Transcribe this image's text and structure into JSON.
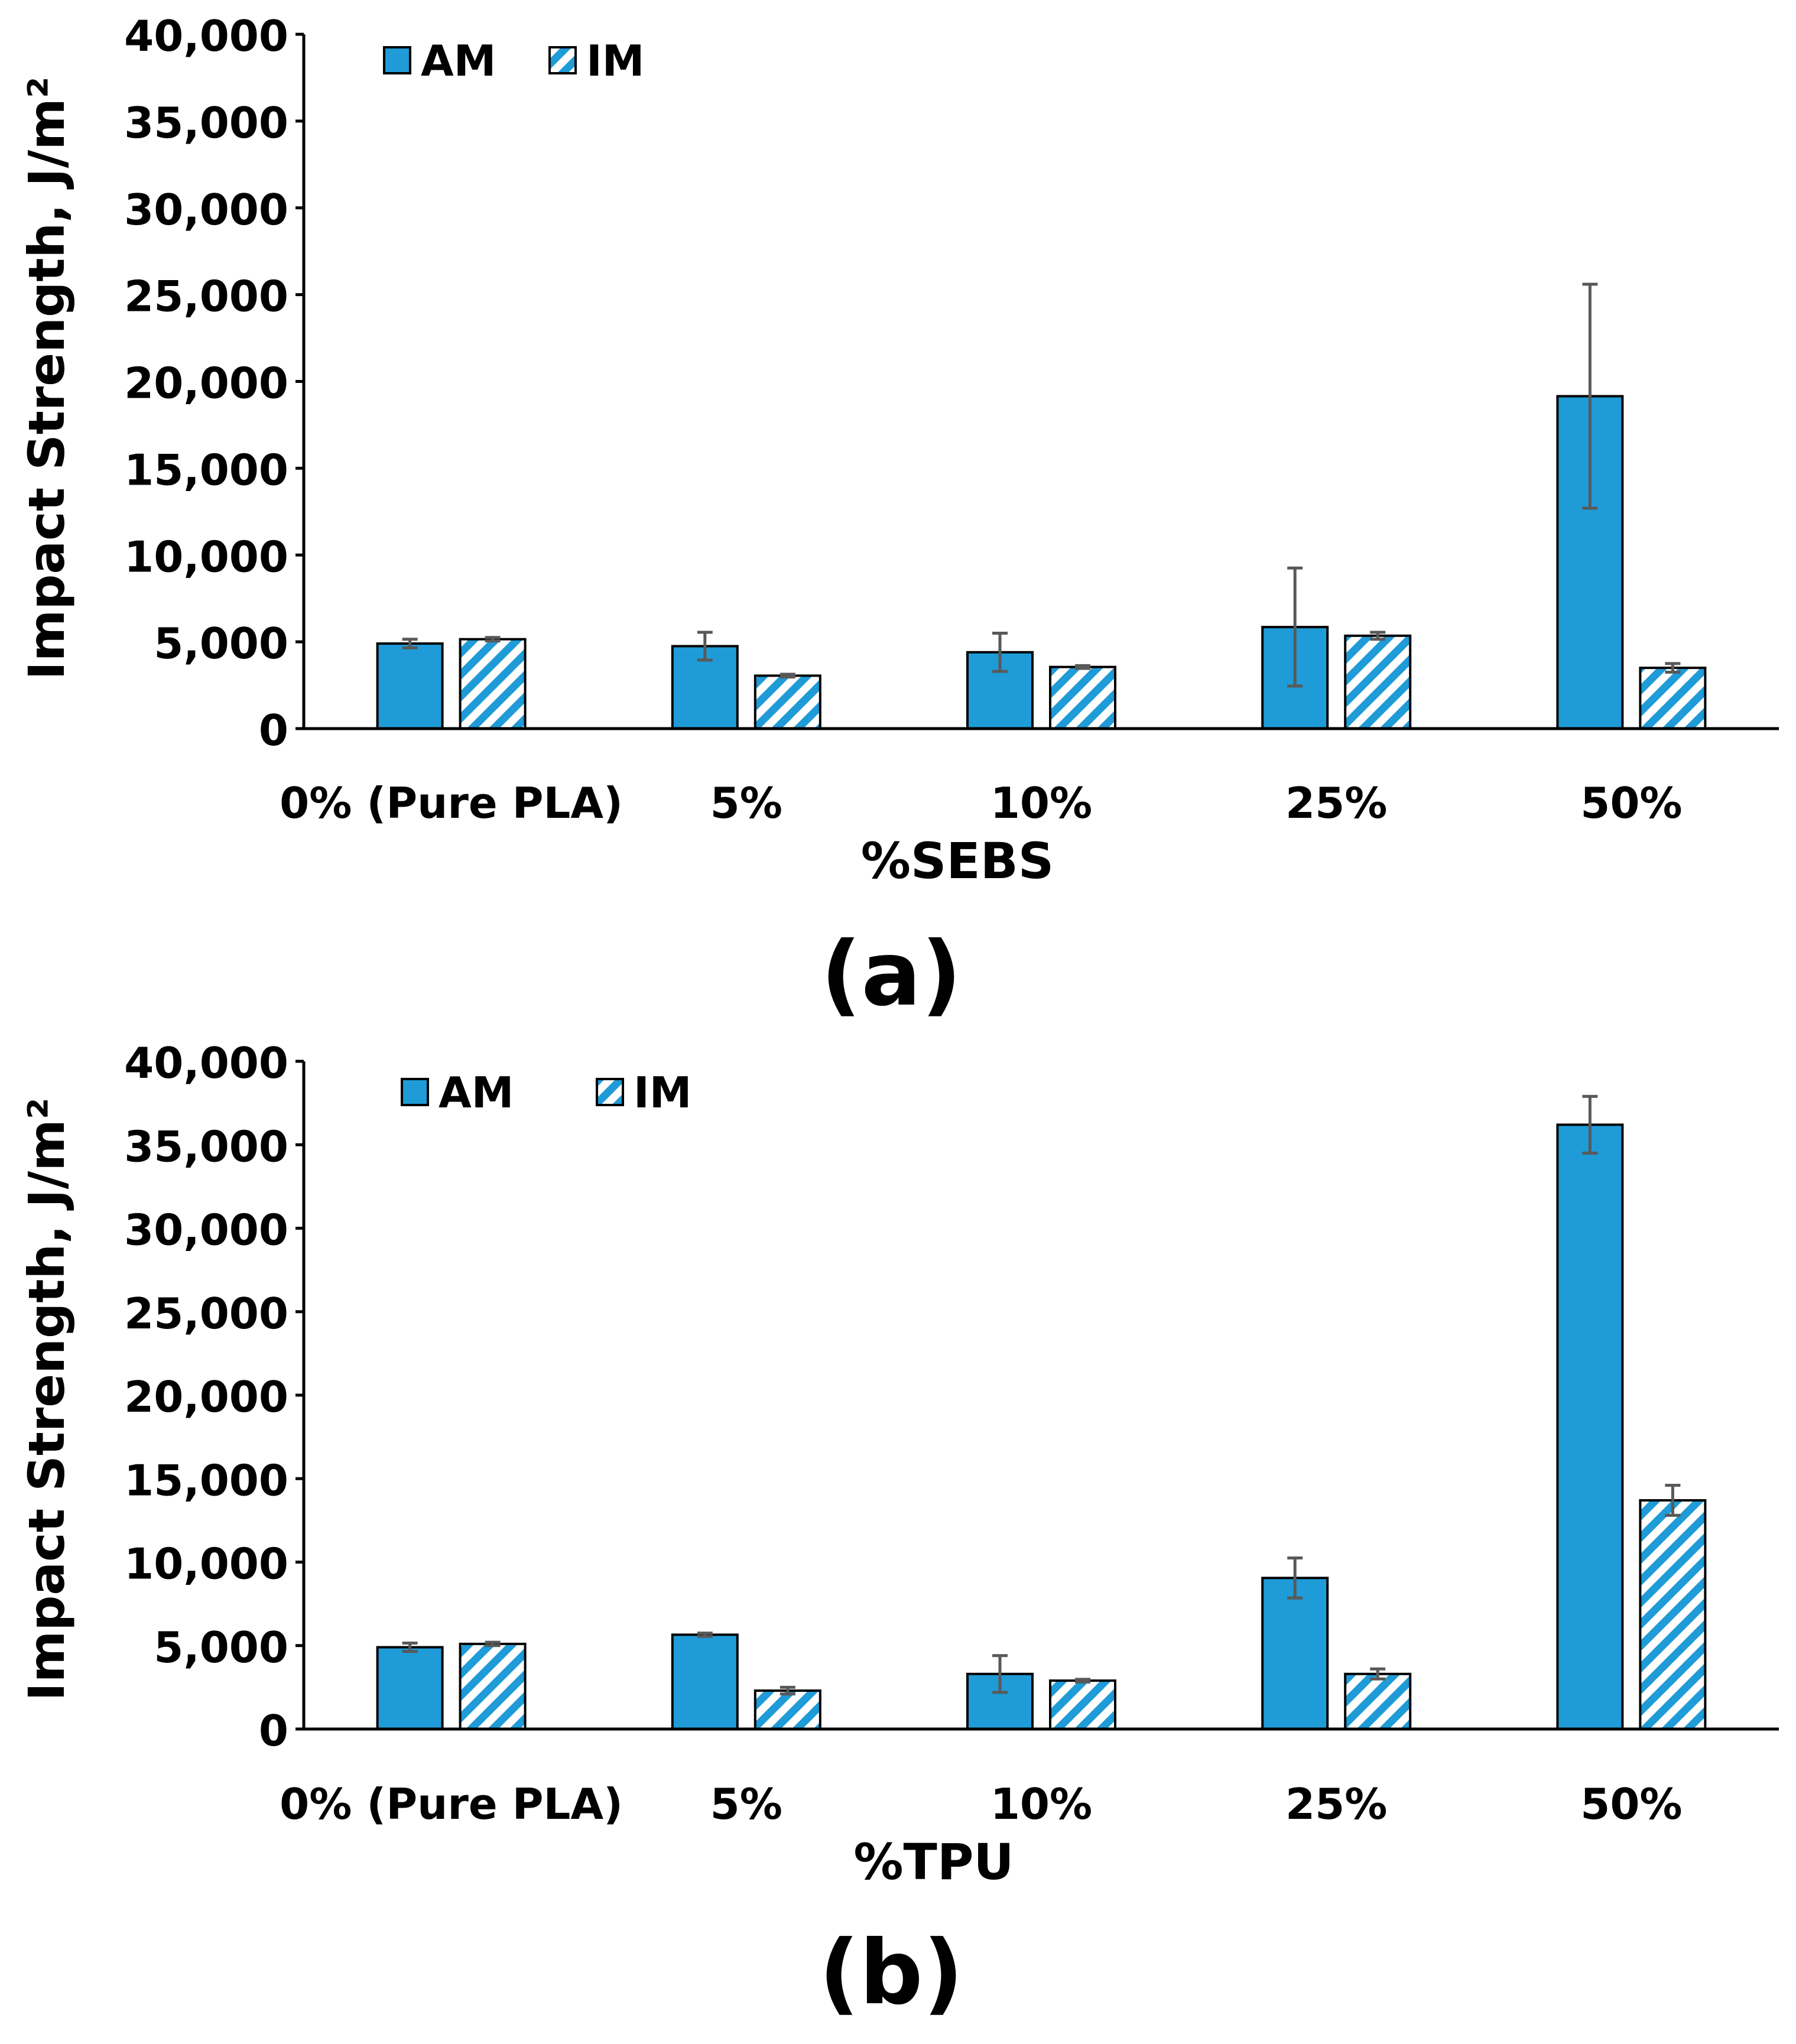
{
  "colors": {
    "am": "#1f9bd7",
    "im_stripe": "#1f9bd7",
    "im_bg": "#ffffff",
    "axis": "#000000",
    "error_bar": "#595959"
  },
  "chart_data": [
    {
      "type": "bar",
      "panel_label": "(a)",
      "xlabel": "%SEBS",
      "ylabel": "Impact Strength, J/m²",
      "ylim": [
        0,
        40000
      ],
      "yticks": [
        0,
        5000,
        10000,
        15000,
        20000,
        25000,
        30000,
        35000,
        40000
      ],
      "ytick_labels": [
        "0",
        "5,000",
        "10,000",
        "15,000",
        "20,000",
        "25,000",
        "30,000",
        "35,000",
        "40,000"
      ],
      "categories": [
        "0% (Pure PLA)",
        "5%",
        "10%",
        "25%",
        "50%"
      ],
      "legend": {
        "position": "top-left",
        "entries": [
          "AM",
          "IM"
        ]
      },
      "series": [
        {
          "name": "AM",
          "values": [
            4900,
            4750,
            4400,
            5850,
            19150
          ],
          "errors": [
            250,
            800,
            1100,
            3400,
            6450
          ]
        },
        {
          "name": "IM",
          "values": [
            5150,
            3050,
            3550,
            5350,
            3500
          ],
          "errors": [
            100,
            80,
            80,
            200,
            250
          ]
        }
      ]
    },
    {
      "type": "bar",
      "panel_label": "(b)",
      "xlabel": "%TPU",
      "ylabel": "Impact Strength, J/m²",
      "ylim": [
        0,
        40000
      ],
      "yticks": [
        0,
        5000,
        10000,
        15000,
        20000,
        25000,
        30000,
        35000,
        40000
      ],
      "ytick_labels": [
        "0",
        "5,000",
        "10,000",
        "15,000",
        "20,000",
        "25,000",
        "30,000",
        "35,000",
        "40,000"
      ],
      "categories": [
        "0% (Pure PLA)",
        "5%",
        "10%",
        "25%",
        "50%"
      ],
      "legend": {
        "position": "top-left",
        "entries": [
          "AM",
          "IM"
        ]
      },
      "series": [
        {
          "name": "AM",
          "values": [
            4900,
            5650,
            3300,
            9050,
            36200
          ],
          "errors": [
            250,
            100,
            1100,
            1200,
            1700
          ]
        },
        {
          "name": "IM",
          "values": [
            5100,
            2300,
            2900,
            3300,
            13700
          ],
          "errors": [
            100,
            200,
            80,
            300,
            900
          ]
        }
      ]
    }
  ]
}
